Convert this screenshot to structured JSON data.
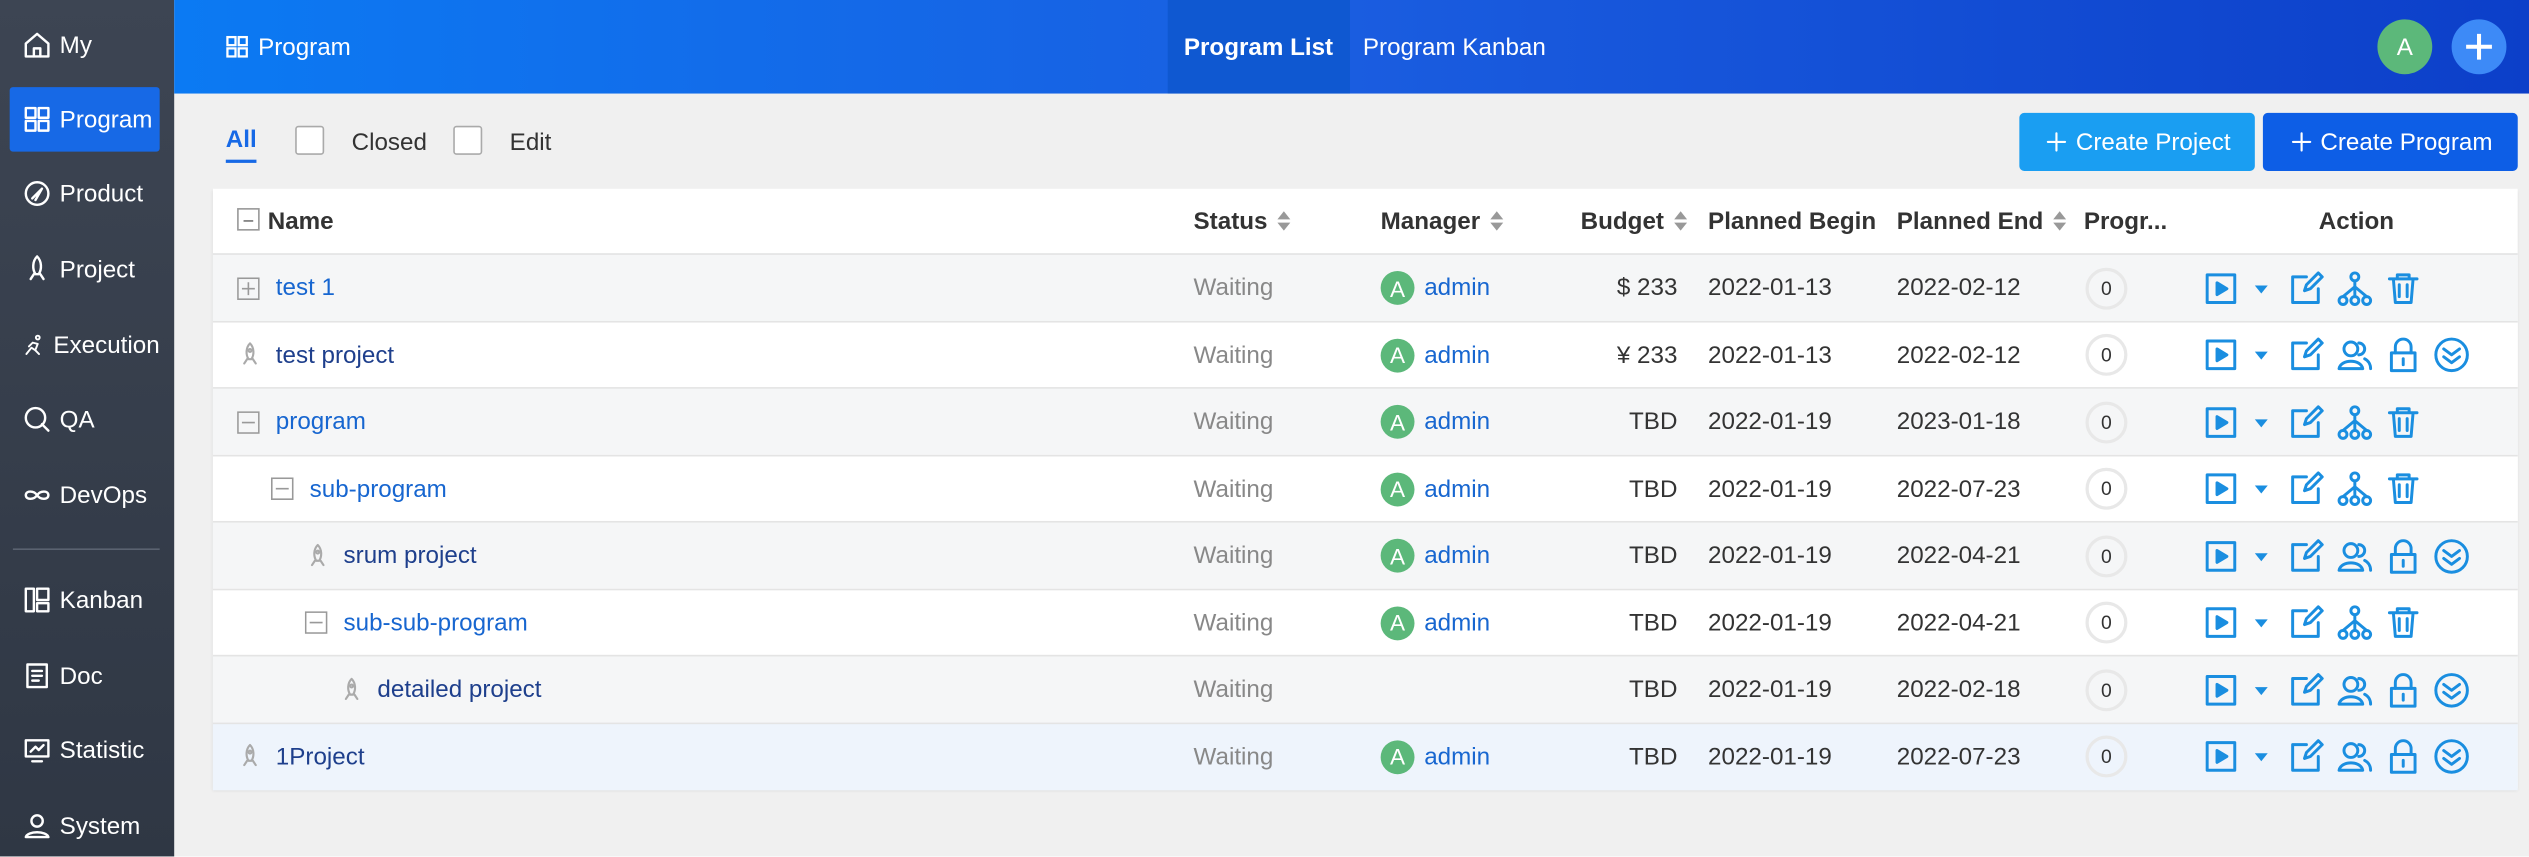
{
  "sidebar": [
    "My",
    "Program",
    "Product",
    "Project",
    "Execution",
    "QA",
    "DevOps",
    "Kanban",
    "Doc",
    "Statistic",
    "System"
  ],
  "sidebar_active": 1,
  "header": {
    "title": "Program",
    "tabs": [
      "Program List",
      "Program Kanban"
    ],
    "active_tab": 0,
    "avatar": "A"
  },
  "toolbar": {
    "filters": [
      "All",
      "Closed",
      "Edit"
    ],
    "buttons": [
      "Create Project",
      "Create Program"
    ]
  },
  "table": {
    "columns": [
      "Name",
      "Status",
      "Manager",
      "Budget",
      "Planned Begin",
      "Planned End",
      "Progr...",
      "Action"
    ],
    "rows": [
      {
        "name": "test 1",
        "level": 0,
        "kind": "program",
        "expand": "plus",
        "status": "Waiting",
        "avatar": "A",
        "manager": "admin",
        "budget": "$ 233",
        "begin": "2022-01-13",
        "end": "2022-02-12",
        "progress": "0"
      },
      {
        "name": "test project",
        "level": 0,
        "kind": "project",
        "status": "Waiting",
        "avatar": "A",
        "manager": "admin",
        "budget": "¥ 233",
        "begin": "2022-01-13",
        "end": "2022-02-12",
        "progress": "0"
      },
      {
        "name": "program",
        "level": 0,
        "kind": "program",
        "expand": "minus",
        "status": "Waiting",
        "avatar": "A",
        "manager": "admin",
        "budget": "TBD",
        "begin": "2022-01-19",
        "end": "2023-01-18",
        "progress": "0"
      },
      {
        "name": "sub-program",
        "level": 1,
        "kind": "program",
        "expand": "minus",
        "status": "Waiting",
        "avatar": "A",
        "manager": "admin",
        "budget": "TBD",
        "begin": "2022-01-19",
        "end": "2022-07-23",
        "progress": "0"
      },
      {
        "name": "srum project",
        "level": 2,
        "kind": "project",
        "status": "Waiting",
        "avatar": "A",
        "manager": "admin",
        "budget": "TBD",
        "begin": "2022-01-19",
        "end": "2022-04-21",
        "progress": "0"
      },
      {
        "name": "sub-sub-program",
        "level": 2,
        "kind": "program",
        "expand": "minus",
        "status": "Waiting",
        "avatar": "A",
        "manager": "admin",
        "budget": "TBD",
        "begin": "2022-01-19",
        "end": "2022-04-21",
        "progress": "0"
      },
      {
        "name": "detailed project",
        "level": 3,
        "kind": "project",
        "status": "Waiting",
        "budget": "TBD",
        "begin": "2022-01-19",
        "end": "2022-02-18",
        "progress": "0"
      },
      {
        "name": "1Project",
        "level": 0,
        "kind": "project",
        "status": "Waiting",
        "avatar": "A",
        "manager": "admin",
        "budget": "TBD",
        "begin": "2022-01-19",
        "end": "2022-07-23",
        "progress": "0"
      }
    ]
  }
}
